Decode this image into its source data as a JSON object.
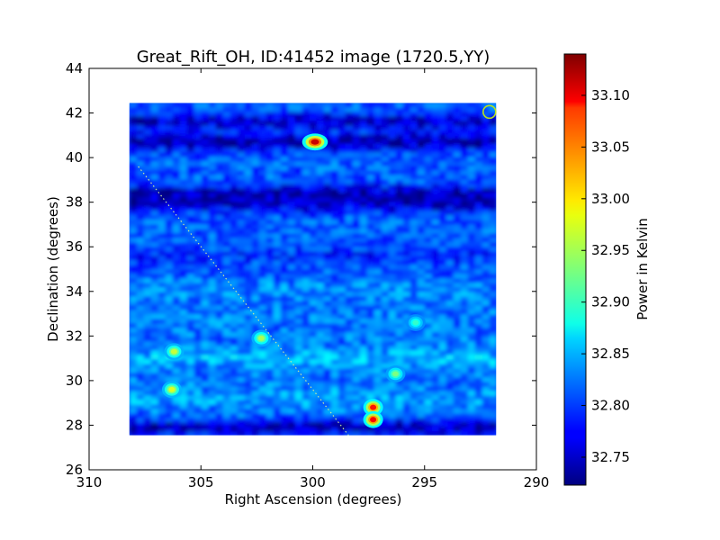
{
  "chart_data": {
    "type": "heatmap",
    "title": "Great_Rift_OH, ID:41452 image (1720.5,YY)",
    "xlabel": "Right Ascension (degrees)",
    "ylabel": "Declination (degrees)",
    "colorbar_label": "Power in Kelvin",
    "xlim": [
      310,
      290
    ],
    "ylim": [
      26,
      44
    ],
    "x_ticks": [
      "310",
      "305",
      "300",
      "295",
      "290"
    ],
    "y_ticks": [
      "26",
      "28",
      "30",
      "32",
      "34",
      "36",
      "38",
      "40",
      "42",
      "44"
    ],
    "colorbar_ticks": [
      "32.75",
      "32.80",
      "32.85",
      "32.90",
      "32.95",
      "33.00",
      "33.05",
      "33.10"
    ],
    "colorbar_range": [
      32.723,
      33.14
    ],
    "colormap": "jet",
    "image_extent": {
      "ra": [
        308.2,
        291.8
      ],
      "dec": [
        27.55,
        42.45
      ]
    },
    "background_level": 32.81,
    "bright_sources": [
      {
        "ra": 299.9,
        "dec": 40.7,
        "power": 33.11
      },
      {
        "ra": 297.3,
        "dec": 28.8,
        "power": 33.08
      },
      {
        "ra": 297.3,
        "dec": 28.25,
        "power": 33.09
      },
      {
        "ra": 306.2,
        "dec": 31.3,
        "power": 32.96
      },
      {
        "ra": 306.3,
        "dec": 29.6,
        "power": 32.97
      },
      {
        "ra": 302.3,
        "dec": 31.9,
        "power": 32.95
      },
      {
        "ra": 296.3,
        "dec": 30.3,
        "power": 32.93
      },
      {
        "ra": 295.4,
        "dec": 32.6,
        "power": 32.9
      }
    ],
    "galactic_plane_line": {
      "from": {
        "ra": 307.8,
        "dec": 39.6
      },
      "to": {
        "ra": 298.4,
        "dec": 27.55
      }
    },
    "marker_circle": {
      "ra": 292.1,
      "dec": 42.05
    }
  }
}
